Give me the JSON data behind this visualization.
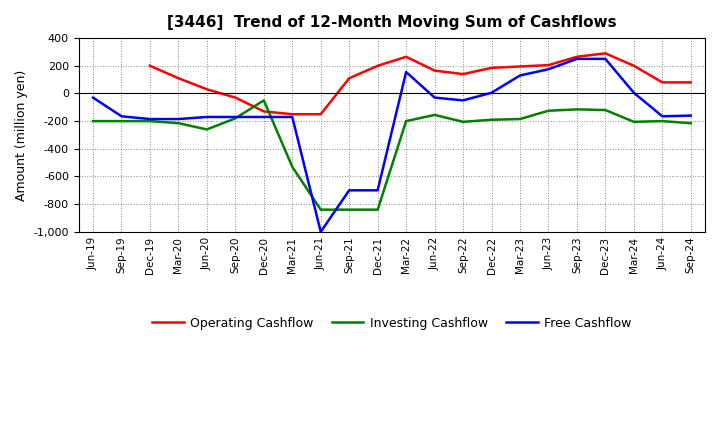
{
  "title": "[3446]  Trend of 12-Month Moving Sum of Cashflows",
  "ylabel": "Amount (million yen)",
  "x_labels": [
    "Jun-19",
    "Sep-19",
    "Dec-19",
    "Mar-20",
    "Jun-20",
    "Sep-20",
    "Dec-20",
    "Mar-21",
    "Jun-21",
    "Sep-21",
    "Dec-21",
    "Mar-22",
    "Jun-22",
    "Sep-22",
    "Dec-22",
    "Mar-23",
    "Jun-23",
    "Sep-23",
    "Dec-23",
    "Mar-24",
    "Jun-24",
    "Sep-24"
  ],
  "operating": [
    null,
    null,
    200,
    110,
    30,
    -30,
    -130,
    -150,
    -150,
    110,
    200,
    265,
    165,
    140,
    185,
    195,
    205,
    265,
    290,
    200,
    80,
    80
  ],
  "investing": [
    -200,
    -200,
    -200,
    -215,
    -260,
    -180,
    -50,
    -530,
    -840,
    -840,
    -840,
    -200,
    -155,
    -205,
    -190,
    -185,
    -125,
    -115,
    -120,
    -205,
    -200,
    -215
  ],
  "free": [
    -30,
    -165,
    -185,
    -185,
    -170,
    -170,
    -170,
    -170,
    -1000,
    -700,
    -700,
    155,
    -30,
    -50,
    5,
    130,
    175,
    250,
    250,
    5,
    -165,
    -160
  ],
  "ylim": [
    -1000,
    400
  ],
  "yticks": [
    -1000,
    -800,
    -600,
    -400,
    -200,
    0,
    200,
    400
  ],
  "colors": {
    "operating": "#ff0000",
    "investing": "#008000",
    "free": "#0000ff"
  },
  "legend": [
    "Operating Cashflow",
    "Investing Cashflow",
    "Free Cashflow"
  ],
  "bg_color": "#ffffff",
  "plot_bg": "#ffffff",
  "grid_color": "#888888"
}
